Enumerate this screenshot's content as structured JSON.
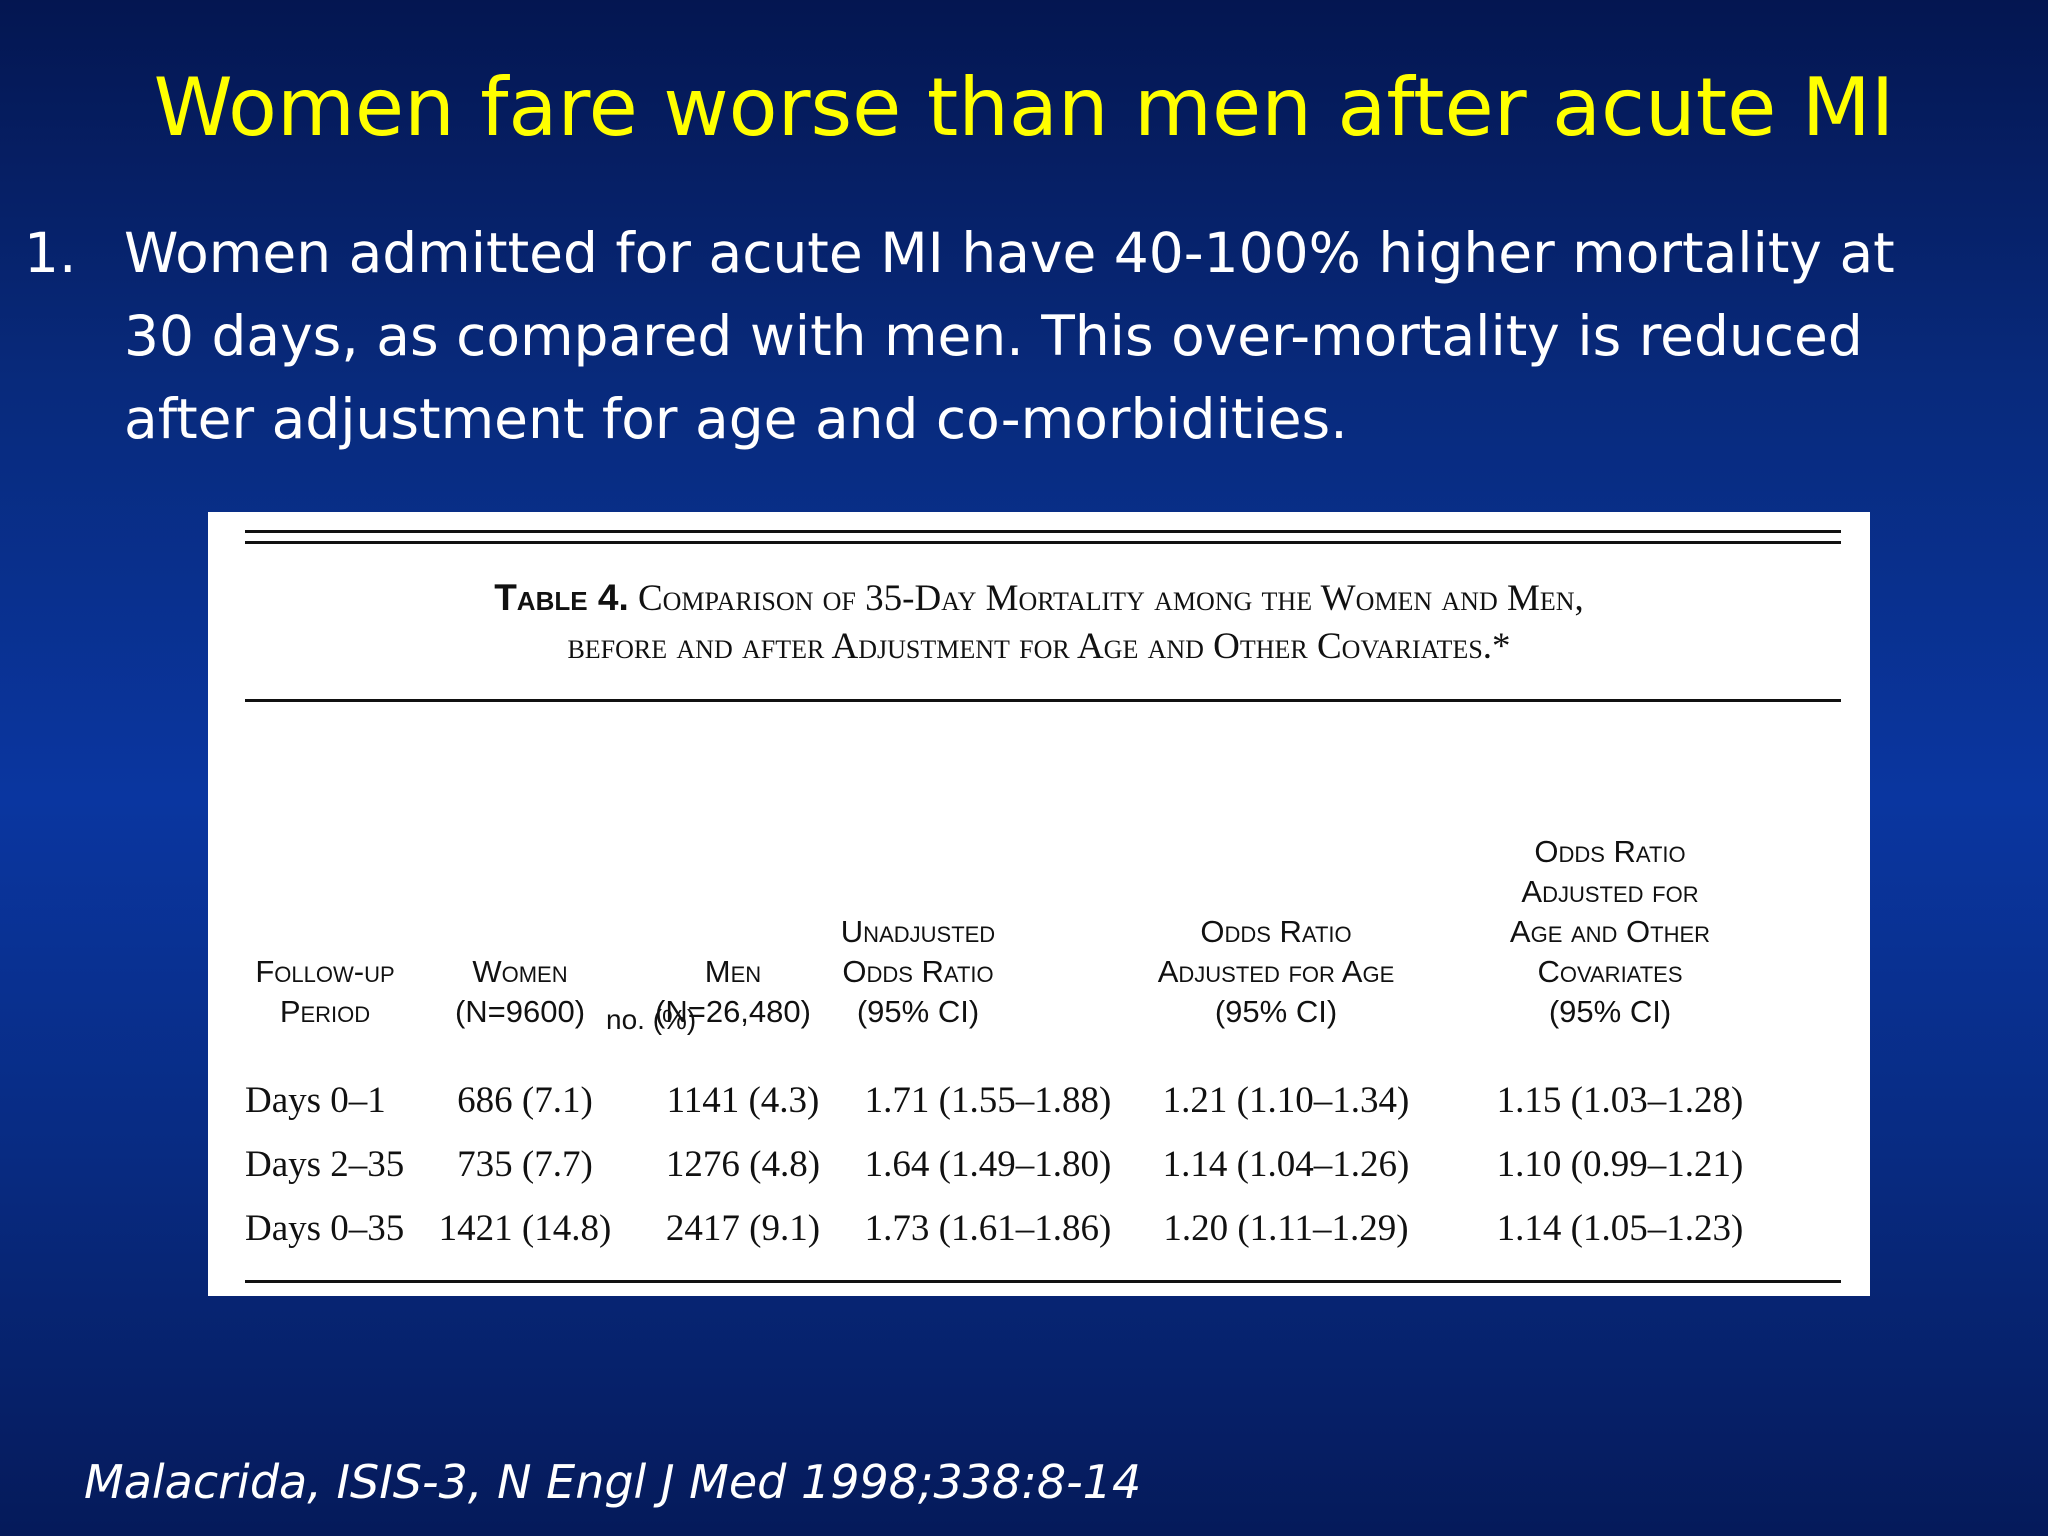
{
  "slide": {
    "title": "Women fare worse than men after acute MI",
    "bullet": {
      "number": "1.",
      "lines": [
        "Women admitted for acute MI have 40-100% higher mortality at",
        "30 days, as compared with men. This over-mortality is reduced",
        "after adjustment for age and co-morbidities."
      ]
    },
    "citation": "Malacrida, ISIS-3, N Engl J Med 1998;338:8-14"
  },
  "table": {
    "caption_lead": "Table 4.",
    "caption_line1": "Comparison of 35-Day Mortality among the Women and Men,",
    "caption_line2": "before and after Adjustment for Age and Other Covariates.*",
    "headers": [
      [
        "Follow-up",
        "Period"
      ],
      [
        "Women",
        "(N=9600)"
      ],
      [
        "Men",
        "(N=26,480)"
      ],
      [
        "Unadjusted",
        "Odds Ratio",
        "(95% CI)"
      ],
      [
        "Odds Ratio",
        "Adjusted for Age",
        "(95% CI)"
      ],
      [
        "Odds Ratio",
        "Adjusted for",
        "Age and Other",
        "Covariates",
        "(95% CI)"
      ]
    ],
    "unit_label": "no. (%)",
    "rows": [
      [
        "Days 0–1",
        "686 (7.1)",
        "1141 (4.3)",
        "1.71 (1.55–1.88)",
        "1.21 (1.10–1.34)",
        "1.15 (1.03–1.28)"
      ],
      [
        "Days 2–35",
        "735 (7.7)",
        "1276 (4.8)",
        "1.64 (1.49–1.80)",
        "1.14 (1.04–1.26)",
        "1.10 (0.99–1.21)"
      ],
      [
        "Days 0–35",
        "1421 (14.8)",
        "2417 (9.1)",
        "1.73 (1.61–1.86)",
        "1.20 (1.11–1.29)",
        "1.14 (1.05–1.23)"
      ]
    ]
  }
}
